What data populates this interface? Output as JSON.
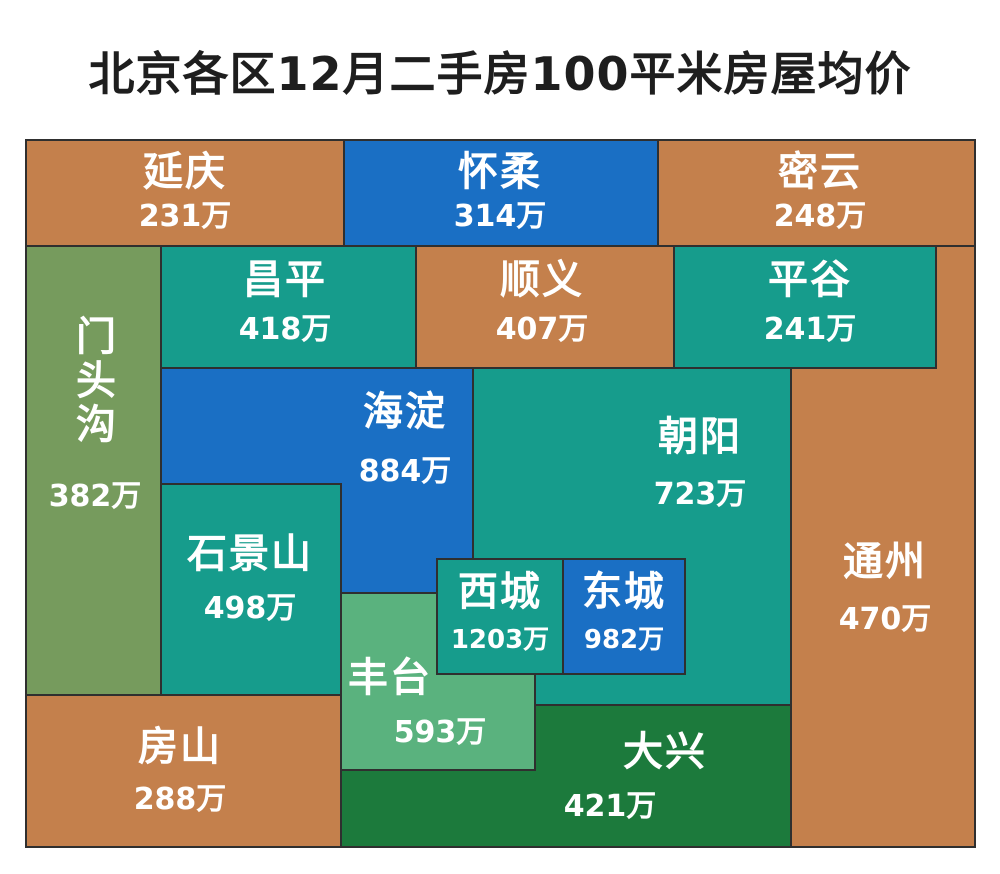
{
  "title": "北京各区12月二手房100平米房屋均价",
  "colors": {
    "orange": "#c4804c",
    "blue": "#1a6fc4",
    "teal": "#169c8c",
    "olive": "#769b5d",
    "lightgreen": "#5ab27e",
    "darkgreen": "#1c7a3c",
    "border": "#2f2f2f"
  },
  "districts": {
    "yanqing": {
      "name": "延庆",
      "price": "231万"
    },
    "huairou": {
      "name": "怀柔",
      "price": "314万"
    },
    "miyun": {
      "name": "密云",
      "price": "248万"
    },
    "mentougou": {
      "name": "门头沟",
      "price": "382万"
    },
    "changping": {
      "name": "昌平",
      "price": "418万"
    },
    "shunyi": {
      "name": "顺义",
      "price": "407万"
    },
    "pinggu": {
      "name": "平谷",
      "price": "241万"
    },
    "haidian": {
      "name": "海淀",
      "price": "884万"
    },
    "chaoyang": {
      "name": "朝阳",
      "price": "723万"
    },
    "tongzhou": {
      "name": "通州",
      "price": "470万"
    },
    "shijingshan": {
      "name": "石景山",
      "price": "498万"
    },
    "xicheng": {
      "name": "西城",
      "price": "1203万"
    },
    "dongcheng": {
      "name": "东城",
      "price": "982万"
    },
    "fengtai": {
      "name": "丰台",
      "price": "593万"
    },
    "daxing": {
      "name": "大兴",
      "price": "421万"
    },
    "fangshan": {
      "name": "房山",
      "price": "288万"
    }
  }
}
